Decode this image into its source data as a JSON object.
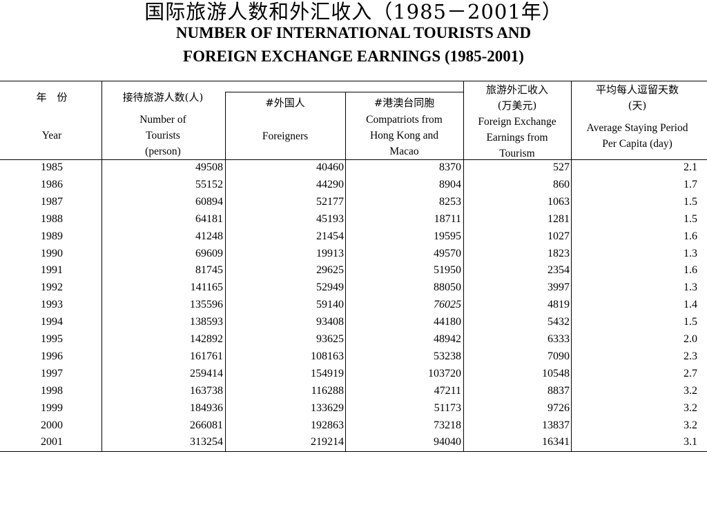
{
  "title": {
    "cn": "国际旅游人数和外汇收入（1985－2001年）",
    "en_line1": "NUMBER OF INTERNATIONAL TOURISTS AND",
    "en_line2": "FOREIGN EXCHANGE EARNINGS (1985-2001)"
  },
  "headers": {
    "year": {
      "cn": "年　份",
      "en": "Year"
    },
    "tourists": {
      "cn": "接待旅游人数(人)",
      "en1": "Number of",
      "en2": "Tourists",
      "en3": "(person)"
    },
    "foreigners": {
      "cn": "#外国人",
      "en": "Foreigners"
    },
    "compatriots": {
      "cn": "#港澳台同胞",
      "en1": "Compatriots from",
      "en2": "Hong Kong and",
      "en3": "Macao"
    },
    "fx": {
      "cn1": "旅游外汇收入",
      "cn2": "(万美元)",
      "en1": "Foreign Exchange",
      "en2": "Earnings from",
      "en3": "Tourism"
    },
    "stay": {
      "cn1": "平均每人逗留天数",
      "cn2": "(天)",
      "en1": "Average Staying Period",
      "en2": "Per Capita (day)"
    }
  },
  "rows": [
    {
      "year": "1985",
      "tourists": "49508",
      "foreigners": "40460",
      "compatriots": "8370",
      "fx": "527",
      "stay": "2.1"
    },
    {
      "year": "1986",
      "tourists": "55152",
      "foreigners": "44290",
      "compatriots": "8904",
      "fx": "860",
      "stay": "1.7"
    },
    {
      "year": "1987",
      "tourists": "60894",
      "foreigners": "52177",
      "compatriots": "8253",
      "fx": "1063",
      "stay": "1.5"
    },
    {
      "year": "1988",
      "tourists": "64181",
      "foreigners": "45193",
      "compatriots": "18711",
      "fx": "1281",
      "stay": "1.5"
    },
    {
      "year": "1989",
      "tourists": "41248",
      "foreigners": "21454",
      "compatriots": "19595",
      "fx": "1027",
      "stay": "1.6"
    },
    {
      "year": "1990",
      "tourists": "69609",
      "foreigners": "19913",
      "compatriots": "49570",
      "fx": "1823",
      "stay": "1.3"
    },
    {
      "year": "1991",
      "tourists": "81745",
      "foreigners": "29625",
      "compatriots": "51950",
      "fx": "2354",
      "stay": "1.6"
    },
    {
      "year": "1992",
      "tourists": "141165",
      "foreigners": "52949",
      "compatriots": "88050",
      "fx": "3997",
      "stay": "1.3"
    },
    {
      "year": "1993",
      "tourists": "135596",
      "foreigners": "59140",
      "compatriots": "76025",
      "fx": "4819",
      "stay": "1.4"
    },
    {
      "year": "1994",
      "tourists": "138593",
      "foreigners": "93408",
      "compatriots": "44180",
      "fx": "5432",
      "stay": "1.5"
    },
    {
      "year": "1995",
      "tourists": "142892",
      "foreigners": "93625",
      "compatriots": "48942",
      "fx": "6333",
      "stay": "2.0"
    },
    {
      "year": "1996",
      "tourists": "161761",
      "foreigners": "108163",
      "compatriots": "53238",
      "fx": "7090",
      "stay": "2.3"
    },
    {
      "year": "1997",
      "tourists": "259414",
      "foreigners": "154919",
      "compatriots": "103720",
      "fx": "10548",
      "stay": "2.7"
    },
    {
      "year": "1998",
      "tourists": "163738",
      "foreigners": "116288",
      "compatriots": "47211",
      "fx": "8837",
      "stay": "3.2"
    },
    {
      "year": "1999",
      "tourists": "184936",
      "foreigners": "133629",
      "compatriots": "51173",
      "fx": "9726",
      "stay": "3.2"
    },
    {
      "year": "2000",
      "tourists": "266081",
      "foreigners": "192863",
      "compatriots": "73218",
      "fx": "13837",
      "stay": "3.2"
    },
    {
      "year": "2001",
      "tourists": "313254",
      "foreigners": "219214",
      "compatriots": "94040",
      "fx": "16341",
      "stay": "3.1"
    }
  ]
}
